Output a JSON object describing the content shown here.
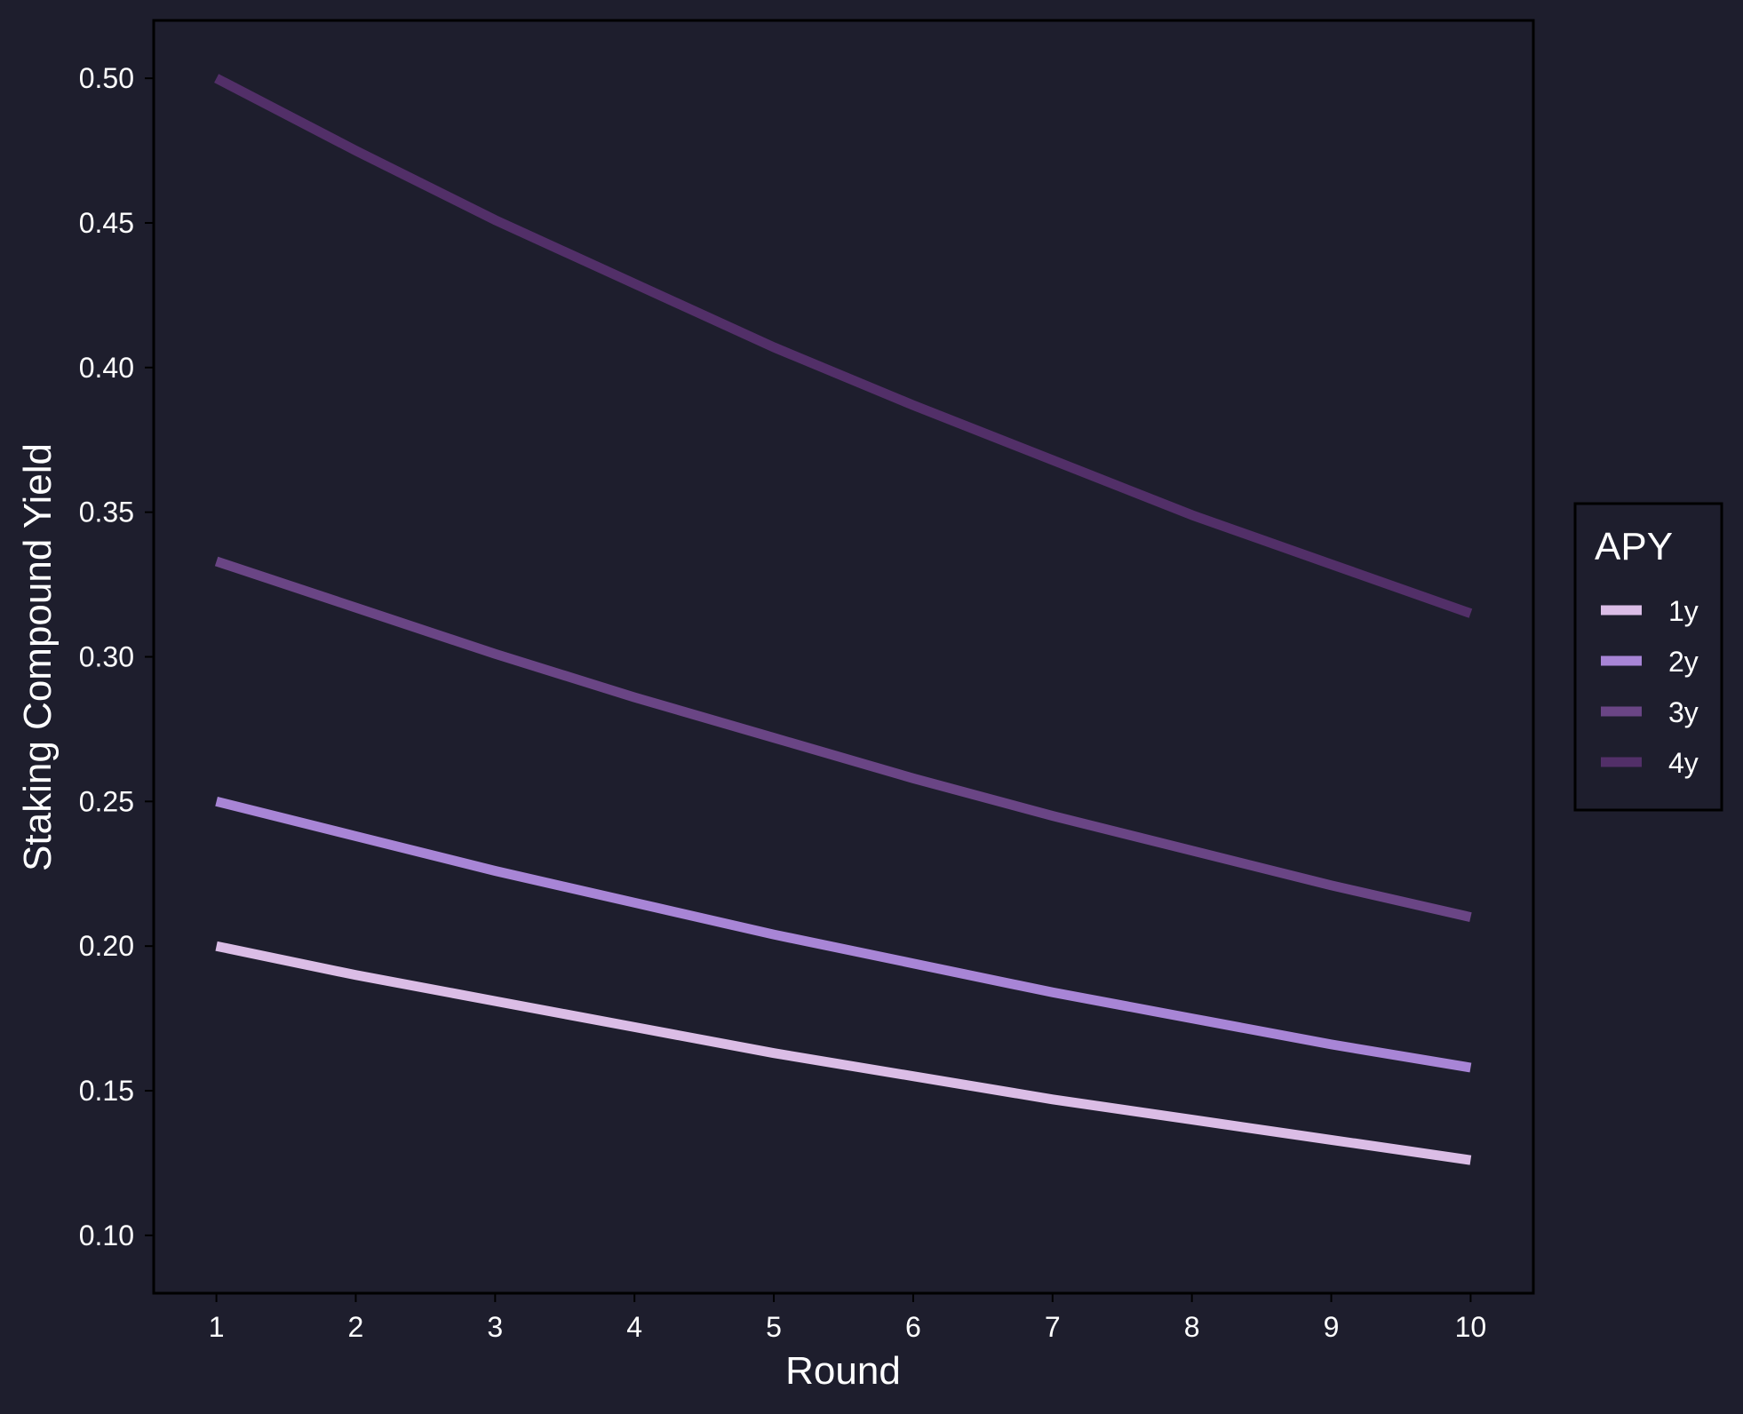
{
  "chart_data": {
    "type": "line",
    "title": "",
    "xlabel": "Round",
    "ylabel": "Staking Compound Yield",
    "x": [
      1,
      2,
      3,
      4,
      5,
      6,
      7,
      8,
      9,
      10
    ],
    "xlim": [
      0.55,
      10.45
    ],
    "ylim": [
      0.08,
      0.52
    ],
    "yticks": [
      0.1,
      0.15,
      0.2,
      0.25,
      0.3,
      0.35,
      0.4,
      0.45,
      0.5
    ],
    "ytick_labels": [
      "0.10",
      "0.15",
      "0.20",
      "0.25",
      "0.30",
      "0.35",
      "0.40",
      "0.45",
      "0.50"
    ],
    "xticks": [
      1,
      2,
      3,
      4,
      5,
      6,
      7,
      8,
      9,
      10
    ],
    "xtick_labels": [
      "1",
      "2",
      "3",
      "4",
      "5",
      "6",
      "7",
      "8",
      "9",
      "10"
    ],
    "grid": false,
    "legend": {
      "title": "APY",
      "position": "right"
    },
    "series": [
      {
        "name": "1y",
        "color": "#dbbde6",
        "values": [
          0.2,
          0.19,
          0.181,
          0.172,
          0.163,
          0.155,
          0.147,
          0.14,
          0.133,
          0.126
        ]
      },
      {
        "name": "2y",
        "color": "#a885d6",
        "values": [
          0.25,
          0.238,
          0.226,
          0.215,
          0.204,
          0.194,
          0.184,
          0.175,
          0.166,
          0.158
        ]
      },
      {
        "name": "3y",
        "color": "#6a4585",
        "values": [
          0.333,
          0.317,
          0.301,
          0.286,
          0.272,
          0.258,
          0.245,
          0.233,
          0.221,
          0.21
        ]
      },
      {
        "name": "4y",
        "color": "#522f68",
        "values": [
          0.5,
          0.475,
          0.451,
          0.429,
          0.407,
          0.387,
          0.368,
          0.349,
          0.332,
          0.315
        ]
      }
    ]
  }
}
